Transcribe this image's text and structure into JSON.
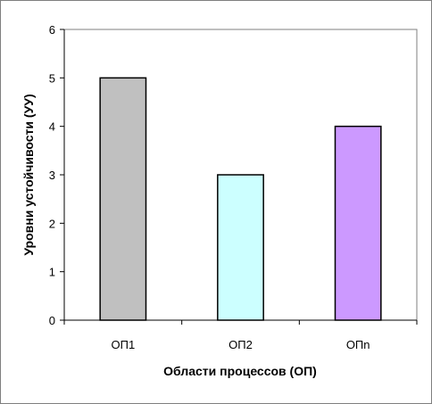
{
  "chart_data": {
    "type": "bar",
    "categories": [
      "ОП1",
      "ОП2",
      "ОПn"
    ],
    "values": [
      5,
      3,
      4
    ],
    "bar_colors": [
      "#c0c0c0",
      "#ccffff",
      "#cc99ff"
    ],
    "xlabel": "Области процессов  (ОП)",
    "ylabel": "Уровни устойчивости  (УУ)",
    "ylim": [
      0,
      6
    ],
    "yticks": [
      "0",
      "1",
      "2",
      "3",
      "4",
      "5",
      "6"
    ],
    "grid": false,
    "legend": false
  }
}
